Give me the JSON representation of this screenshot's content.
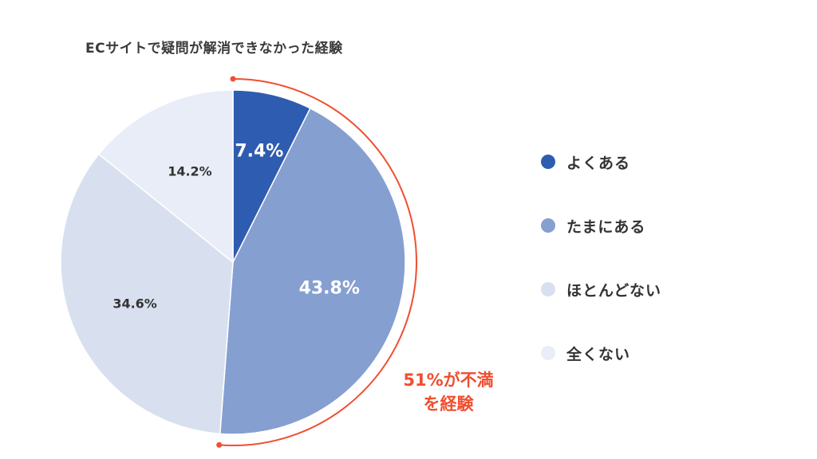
{
  "chart_data": {
    "type": "pie",
    "title": "ECサイトで疑問が解消できなかった経験",
    "slices": [
      {
        "label": "よくある",
        "value": 7.4,
        "display": "7.4%",
        "color": "#2e5cb0"
      },
      {
        "label": "たまにある",
        "value": 43.8,
        "display": "43.8%",
        "color": "#869fd1"
      },
      {
        "label": "ほとんどない",
        "value": 34.6,
        "display": "34.6%",
        "color": "#d8e0f0"
      },
      {
        "label": "全くない",
        "value": 14.2,
        "display": "14.2%",
        "color": "#e9edf7"
      }
    ],
    "legend_placement": "right",
    "annotation": {
      "line1": "51%が不満",
      "line2": "を経験",
      "color": "#f04e2f"
    }
  }
}
